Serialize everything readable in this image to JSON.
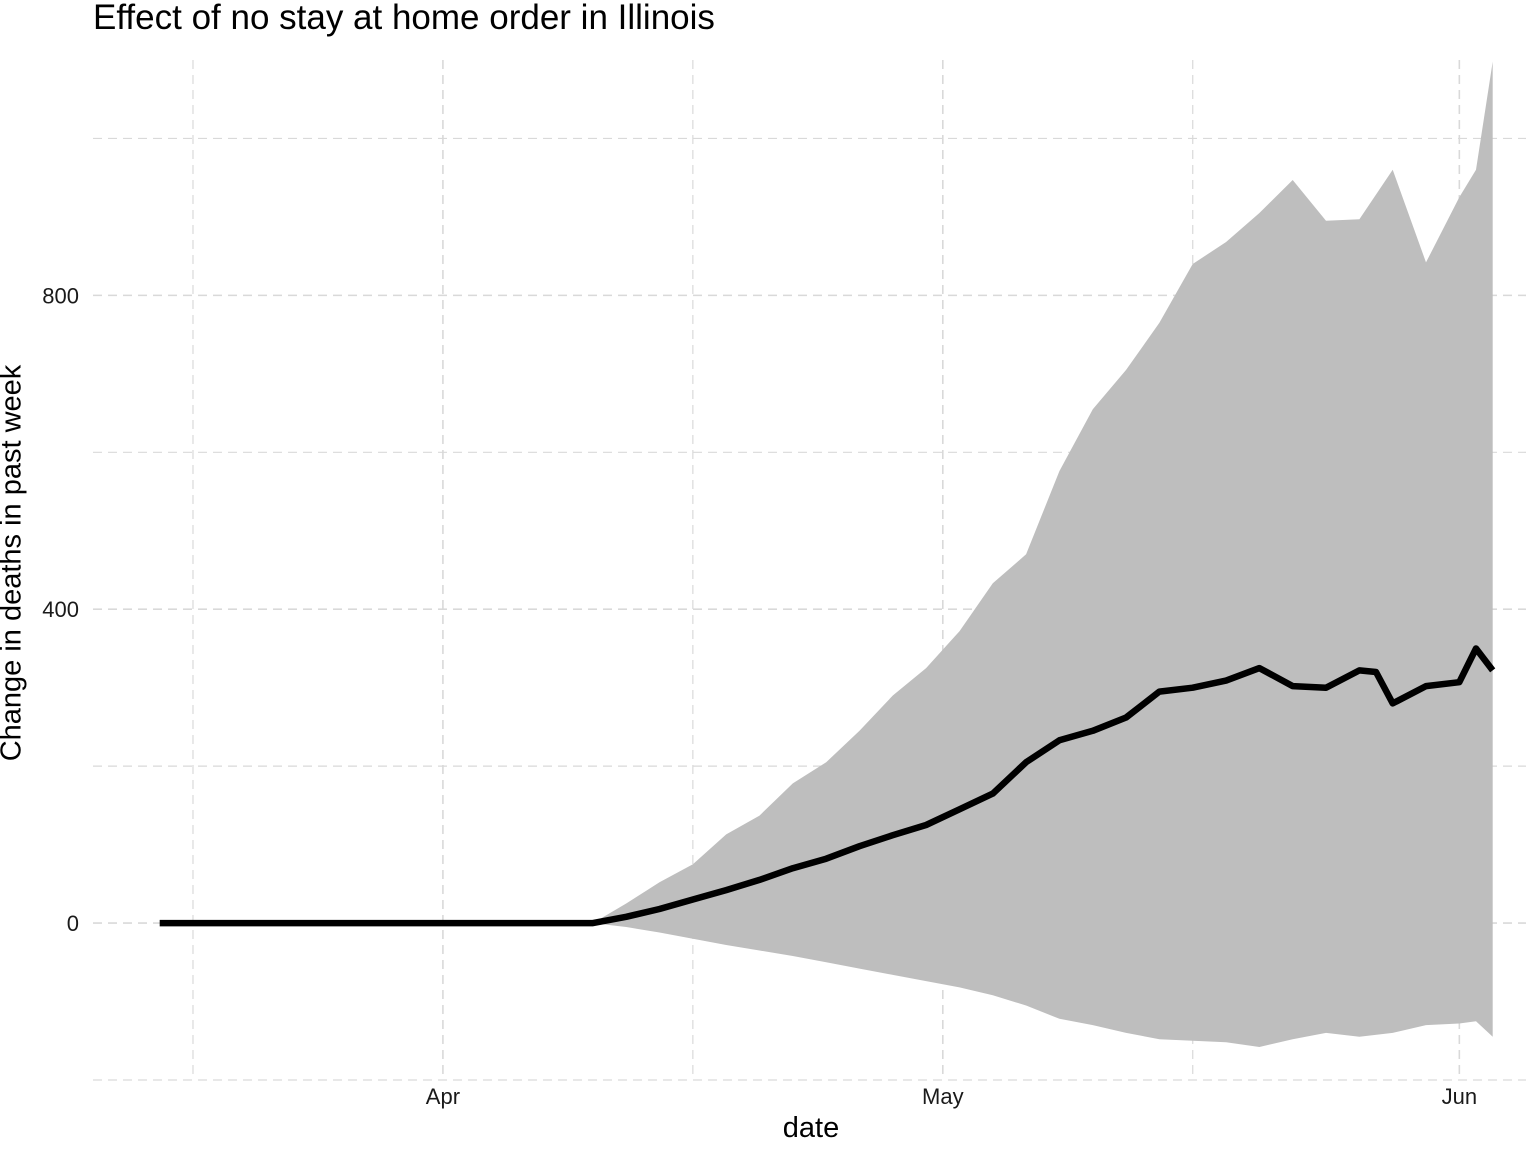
{
  "chart_data": {
    "type": "area",
    "title": "Effect of no stay at home order in Illinois",
    "xlabel": "date",
    "ylabel": "Change in deaths in past week",
    "xlim": [
      "2020-03-11",
      "2020-06-05"
    ],
    "ylim": [
      -200,
      1100
    ],
    "x_ticks": [
      {
        "date": "2020-04-01",
        "label": "Apr"
      },
      {
        "date": "2020-05-01",
        "label": "May"
      },
      {
        "date": "2020-06-01",
        "label": "Jun"
      }
    ],
    "x_minor_ticks": [
      "2020-03-17",
      "2020-04-16",
      "2020-05-16"
    ],
    "y_ticks": [
      0,
      400,
      800
    ],
    "y_minor_ticks": [
      -200,
      200,
      600,
      1000
    ],
    "grid": true,
    "colors": {
      "line": "#000000",
      "ribbon": "#bebebe",
      "grid": "#d9d9d9"
    },
    "series": [
      {
        "kind": "band",
        "x": [
          "2020-04-10",
          "2020-04-12",
          "2020-04-14",
          "2020-04-16",
          "2020-04-18",
          "2020-04-20",
          "2020-04-22",
          "2020-04-24",
          "2020-04-26",
          "2020-04-28",
          "2020-04-30",
          "2020-05-02",
          "2020-05-04",
          "2020-05-06",
          "2020-05-08",
          "2020-05-10",
          "2020-05-12",
          "2020-05-14",
          "2020-05-16",
          "2020-05-18",
          "2020-05-20",
          "2020-05-22",
          "2020-05-24",
          "2020-05-26",
          "2020-05-28",
          "2020-05-30",
          "2020-06-01",
          "2020-06-02",
          "2020-06-03"
        ],
        "upper": [
          0,
          25,
          52,
          75,
          113,
          137,
          178,
          205,
          245,
          290,
          325,
          372,
          433,
          470,
          576,
          655,
          705,
          765,
          840,
          868,
          905,
          947,
          895,
          897,
          960,
          842,
          925,
          960,
          1098
        ],
        "lower": [
          0,
          -5,
          -12,
          -20,
          -28,
          -35,
          -42,
          -50,
          -58,
          -66,
          -74,
          -82,
          -92,
          -105,
          -122,
          -130,
          -140,
          -148,
          -150,
          -152,
          -158,
          -148,
          -140,
          -145,
          -140,
          -130,
          -128,
          -125,
          -145
        ]
      },
      {
        "kind": "line",
        "x": [
          "2020-03-15",
          "2020-04-10",
          "2020-04-12",
          "2020-04-14",
          "2020-04-16",
          "2020-04-18",
          "2020-04-20",
          "2020-04-22",
          "2020-04-24",
          "2020-04-26",
          "2020-04-28",
          "2020-04-30",
          "2020-05-02",
          "2020-05-04",
          "2020-05-06",
          "2020-05-08",
          "2020-05-10",
          "2020-05-12",
          "2020-05-14",
          "2020-05-16",
          "2020-05-18",
          "2020-05-20",
          "2020-05-22",
          "2020-05-24",
          "2020-05-26",
          "2020-05-27",
          "2020-05-28",
          "2020-05-30",
          "2020-06-01",
          "2020-06-02",
          "2020-06-03"
        ],
        "values": [
          0,
          0,
          8,
          18,
          30,
          42,
          55,
          70,
          82,
          98,
          112,
          125,
          145,
          165,
          205,
          233,
          245,
          262,
          295,
          300,
          309,
          325,
          302,
          300,
          322,
          320,
          280,
          302,
          307,
          350,
          322
        ]
      }
    ]
  }
}
